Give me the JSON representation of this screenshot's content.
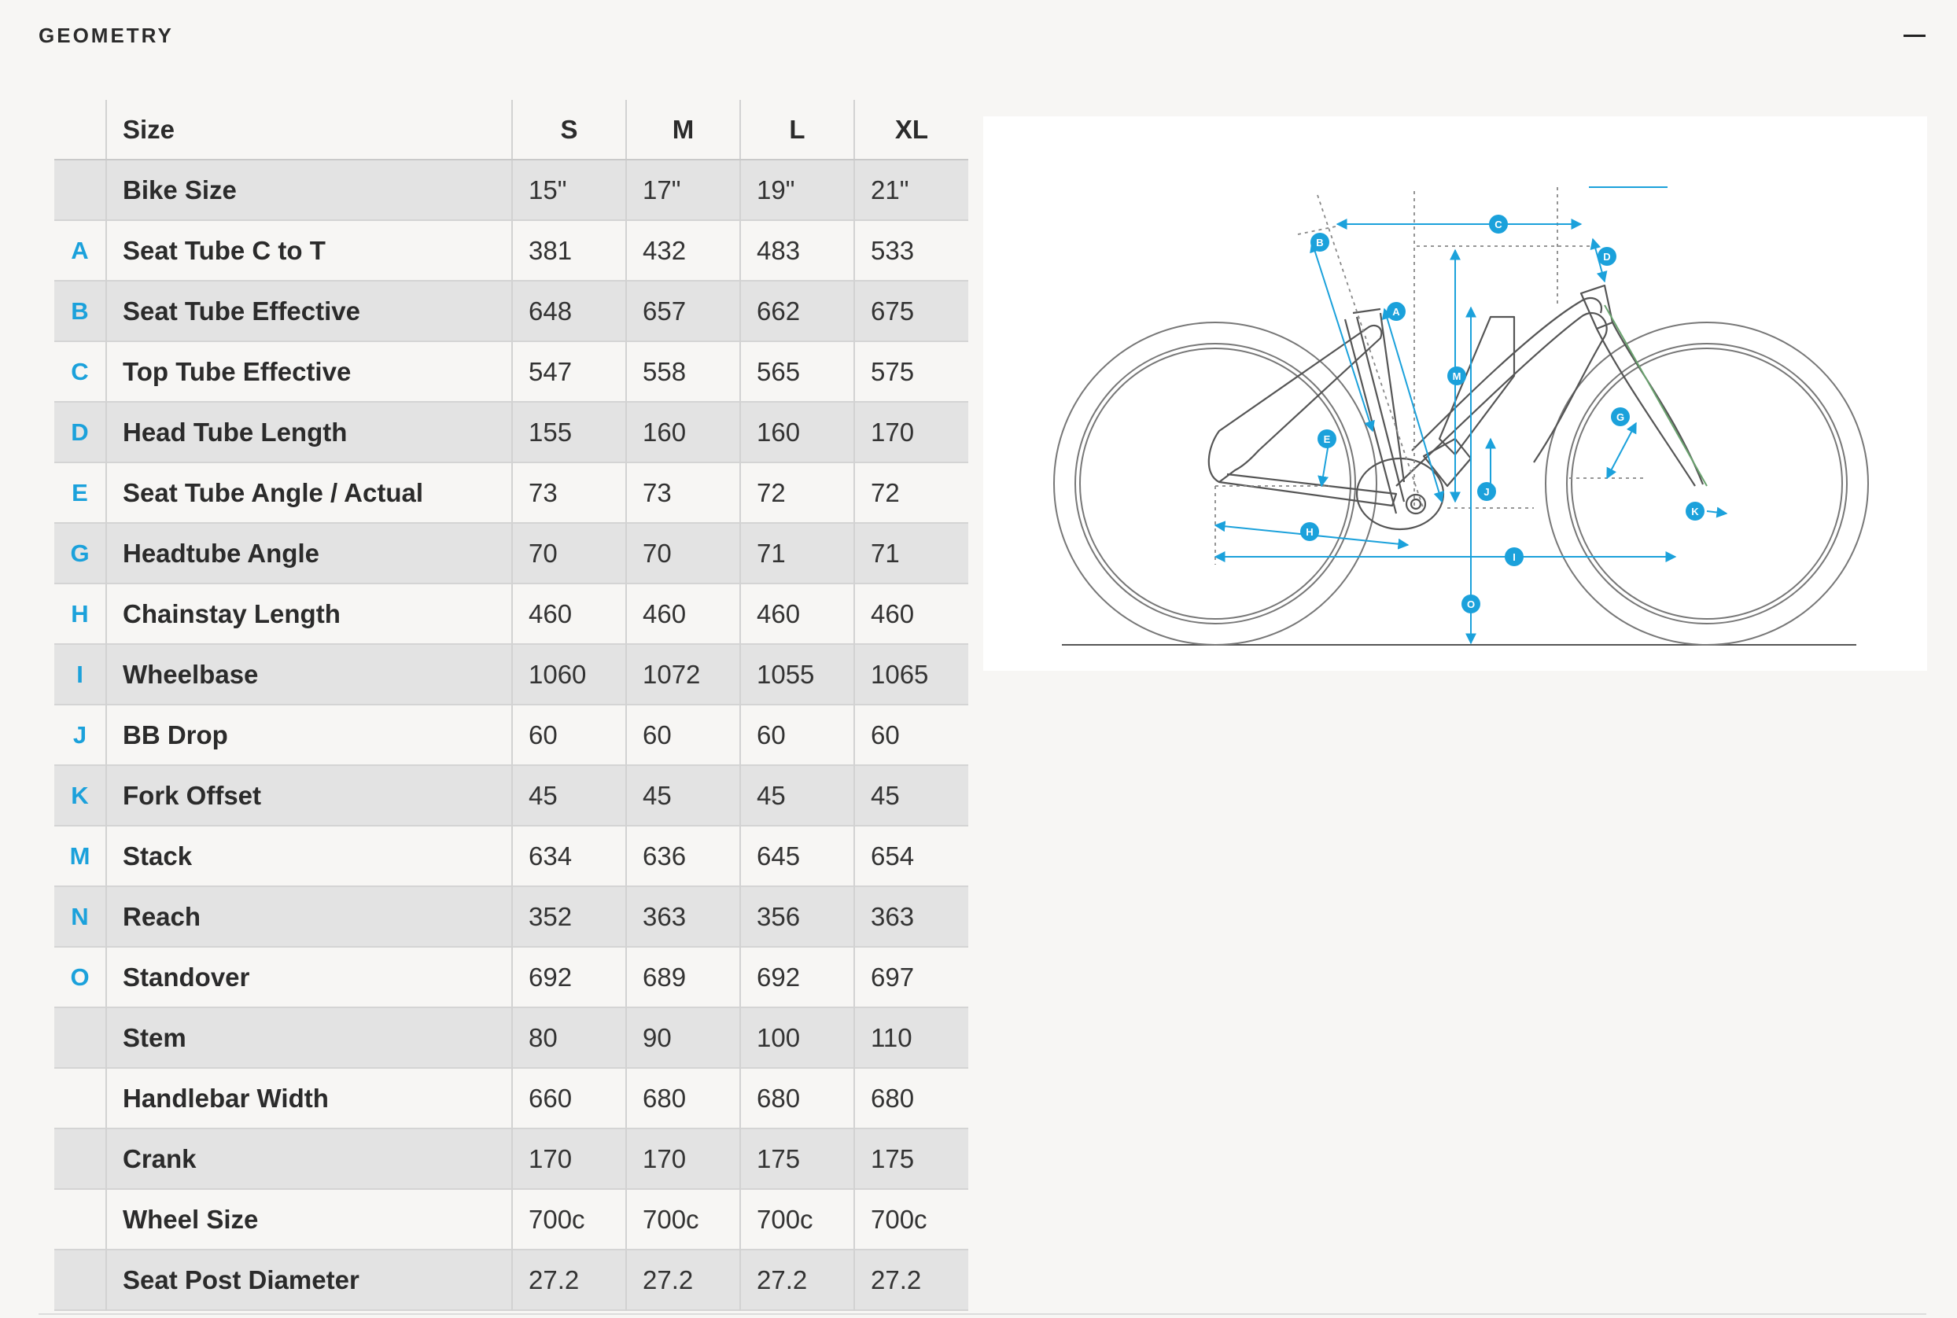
{
  "section": {
    "title": "GEOMETRY"
  },
  "table": {
    "header": {
      "label": "Size",
      "sizes": [
        "S",
        "M",
        "L",
        "XL"
      ]
    },
    "rows": [
      {
        "letter": "",
        "name": "Bike Size",
        "values": [
          "15\"",
          "17\"",
          "19\"",
          "21\""
        ]
      },
      {
        "letter": "A",
        "name": "Seat Tube C to T",
        "values": [
          "381",
          "432",
          "483",
          "533"
        ]
      },
      {
        "letter": "B",
        "name": "Seat Tube Effective",
        "values": [
          "648",
          "657",
          "662",
          "675"
        ]
      },
      {
        "letter": "C",
        "name": "Top Tube Effective",
        "values": [
          "547",
          "558",
          "565",
          "575"
        ]
      },
      {
        "letter": "D",
        "name": "Head Tube Length",
        "values": [
          "155",
          "160",
          "160",
          "170"
        ]
      },
      {
        "letter": "E",
        "name": "Seat Tube Angle / Actual",
        "values": [
          "73",
          "73",
          "72",
          "72"
        ]
      },
      {
        "letter": "G",
        "name": "Headtube Angle",
        "values": [
          "70",
          "70",
          "71",
          "71"
        ]
      },
      {
        "letter": "H",
        "name": "Chainstay Length",
        "values": [
          "460",
          "460",
          "460",
          "460"
        ]
      },
      {
        "letter": "I",
        "name": "Wheelbase",
        "values": [
          "1060",
          "1072",
          "1055",
          "1065"
        ]
      },
      {
        "letter": "J",
        "name": "BB Drop",
        "values": [
          "60",
          "60",
          "60",
          "60"
        ]
      },
      {
        "letter": "K",
        "name": "Fork Offset",
        "values": [
          "45",
          "45",
          "45",
          "45"
        ]
      },
      {
        "letter": "M",
        "name": "Stack",
        "values": [
          "634",
          "636",
          "645",
          "654"
        ]
      },
      {
        "letter": "N",
        "name": "Reach",
        "values": [
          "352",
          "363",
          "356",
          "363"
        ]
      },
      {
        "letter": "O",
        "name": "Standover",
        "values": [
          "692",
          "689",
          "692",
          "697"
        ]
      },
      {
        "letter": "",
        "name": "Stem",
        "values": [
          "80",
          "90",
          "100",
          "110"
        ]
      },
      {
        "letter": "",
        "name": "Handlebar Width",
        "values": [
          "660",
          "680",
          "680",
          "680"
        ]
      },
      {
        "letter": "",
        "name": "Crank",
        "values": [
          "170",
          "170",
          "175",
          "175"
        ]
      },
      {
        "letter": "",
        "name": "Wheel Size",
        "values": [
          "700c",
          "700c",
          "700c",
          "700c"
        ]
      },
      {
        "letter": "",
        "name": "Seat Post Diameter",
        "values": [
          "27.2",
          "27.2",
          "27.2",
          "27.2"
        ]
      }
    ]
  },
  "diagram": {
    "markers": [
      "A",
      "B",
      "C",
      "D",
      "E",
      "G",
      "H",
      "I",
      "J",
      "K",
      "M",
      "O"
    ]
  },
  "colors": {
    "accent": "#1ba1db",
    "row_alt": "#e3e3e3",
    "background": "#f7f6f4",
    "frame_line": "#555555",
    "fork_line": "#6aa36f"
  },
  "icons": {
    "collapse": "minus-icon"
  }
}
